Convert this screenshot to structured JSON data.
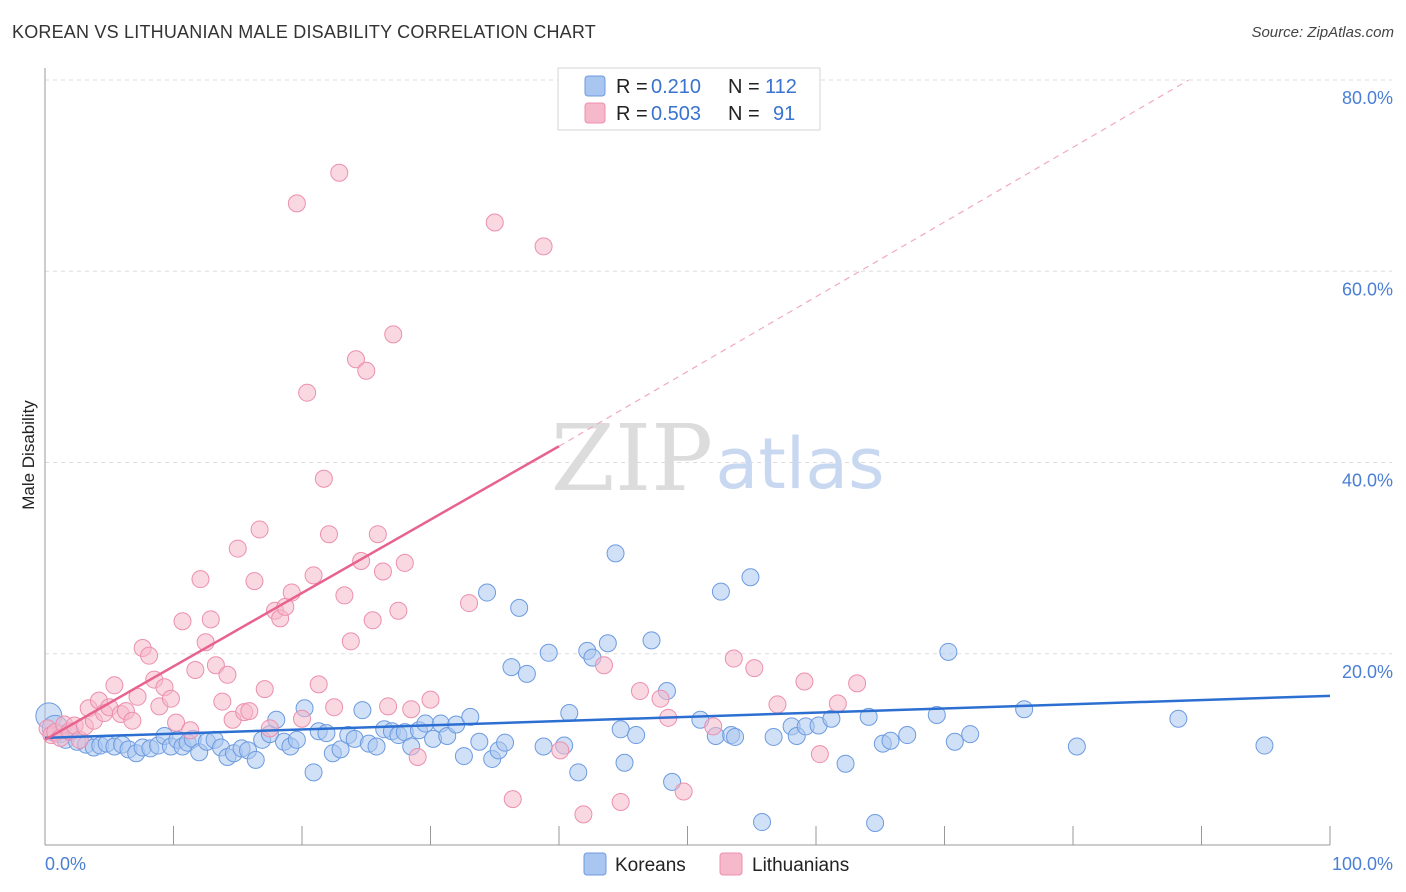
{
  "header": {
    "title": "KOREAN VS LITHUANIAN MALE DISABILITY CORRELATION CHART",
    "source": "Source: ZipAtlas.com"
  },
  "watermark": {
    "zip": "ZIP",
    "atlas": "atlas"
  },
  "colors": {
    "korean_fill": "#a9c6f0",
    "korean_stroke": "#6d9be0",
    "korean_line": "#2c6fd1",
    "lithuanian_fill": "#f6b8cb",
    "lithuanian_stroke": "#ec8fae",
    "lithuanian_line": "#e8628f",
    "axis_tick": "#4a7fd4",
    "grid": "#dddddd"
  },
  "legend": {
    "r_label": "R =",
    "n_label": "N =",
    "rows": [
      {
        "series": "Koreans",
        "r": "0.210",
        "n": "112"
      },
      {
        "series": "Lithuanians",
        "r": "0.503",
        "n": "91"
      }
    ]
  },
  "bottom_legend": [
    "Koreans",
    "Lithuanians"
  ],
  "chart_data": {
    "type": "scatter",
    "title": "KOREAN VS LITHUANIAN MALE DISABILITY CORRELATION CHART",
    "xlabel": "",
    "ylabel": "Male Disability",
    "xlim": [
      0,
      100
    ],
    "ylim": [
      0,
      80
    ],
    "x_tick_labels": [
      "0.0%",
      "100.0%"
    ],
    "y_ticks": [
      20,
      40,
      60,
      80
    ],
    "y_tick_labels": [
      "20.0%",
      "40.0%",
      "60.0%",
      "80.0%"
    ],
    "grid": true,
    "series": [
      {
        "name": "Koreans",
        "trend": {
          "x0": 0,
          "y0": 11.2,
          "x1": 100,
          "y1": 15.6,
          "dashed_extension": false
        },
        "points": [
          [
            0.3,
            13.5
          ],
          [
            0.8,
            12.2
          ],
          [
            1.2,
            11.6
          ],
          [
            1.6,
            11.0
          ],
          [
            2.0,
            11.8
          ],
          [
            2.5,
            10.8
          ],
          [
            3.2,
            10.5
          ],
          [
            3.8,
            10.2
          ],
          [
            4.3,
            10.4
          ],
          [
            4.8,
            10.6
          ],
          [
            5.4,
            10.3
          ],
          [
            6.0,
            10.5
          ],
          [
            6.5,
            10.0
          ],
          [
            7.1,
            9.6
          ],
          [
            7.6,
            10.2
          ],
          [
            8.2,
            10.1
          ],
          [
            8.8,
            10.4
          ],
          [
            9.3,
            11.4
          ],
          [
            9.8,
            10.3
          ],
          [
            10.3,
            11.0
          ],
          [
            10.7,
            10.3
          ],
          [
            11.1,
            10.7
          ],
          [
            11.5,
            11.1
          ],
          [
            12.0,
            9.7
          ],
          [
            12.6,
            10.8
          ],
          [
            13.2,
            11.0
          ],
          [
            13.7,
            10.2
          ],
          [
            14.2,
            9.2
          ],
          [
            14.7,
            9.6
          ],
          [
            15.3,
            10.1
          ],
          [
            15.8,
            9.9
          ],
          [
            16.4,
            8.9
          ],
          [
            16.9,
            11.0
          ],
          [
            17.5,
            11.6
          ],
          [
            18.0,
            13.1
          ],
          [
            18.6,
            10.8
          ],
          [
            19.1,
            10.3
          ],
          [
            19.6,
            11.0
          ],
          [
            20.2,
            14.3
          ],
          [
            20.9,
            7.6
          ],
          [
            21.3,
            11.9
          ],
          [
            21.9,
            11.7
          ],
          [
            22.4,
            9.6
          ],
          [
            23.0,
            10.0
          ],
          [
            23.6,
            11.5
          ],
          [
            24.1,
            11.1
          ],
          [
            24.7,
            14.1
          ],
          [
            25.2,
            10.6
          ],
          [
            25.8,
            10.3
          ],
          [
            26.4,
            12.1
          ],
          [
            27.0,
            11.9
          ],
          [
            27.5,
            11.5
          ],
          [
            28.0,
            11.8
          ],
          [
            28.5,
            10.3
          ],
          [
            29.1,
            12.0
          ],
          [
            29.6,
            12.7
          ],
          [
            30.2,
            11.1
          ],
          [
            30.8,
            12.7
          ],
          [
            31.3,
            11.4
          ],
          [
            32.0,
            12.6
          ],
          [
            32.6,
            9.3
          ],
          [
            33.1,
            13.4
          ],
          [
            33.8,
            10.8
          ],
          [
            34.4,
            26.4
          ],
          [
            34.8,
            9.0
          ],
          [
            35.3,
            9.9
          ],
          [
            35.8,
            10.7
          ],
          [
            36.3,
            18.6
          ],
          [
            36.9,
            24.8
          ],
          [
            37.5,
            17.9
          ],
          [
            38.8,
            10.3
          ],
          [
            39.2,
            20.1
          ],
          [
            40.4,
            10.4
          ],
          [
            40.8,
            13.8
          ],
          [
            41.5,
            7.6
          ],
          [
            42.2,
            20.3
          ],
          [
            42.6,
            19.6
          ],
          [
            43.8,
            21.1
          ],
          [
            44.4,
            30.5
          ],
          [
            44.8,
            12.1
          ],
          [
            45.1,
            8.6
          ],
          [
            46.0,
            11.5
          ],
          [
            47.2,
            21.4
          ],
          [
            48.4,
            16.1
          ],
          [
            48.8,
            6.6
          ],
          [
            51.0,
            13.1
          ],
          [
            52.2,
            11.4
          ],
          [
            52.6,
            26.5
          ],
          [
            53.4,
            11.5
          ],
          [
            53.7,
            11.3
          ],
          [
            54.9,
            28.0
          ],
          [
            55.8,
            2.4
          ],
          [
            56.7,
            11.3
          ],
          [
            58.1,
            12.4
          ],
          [
            58.5,
            11.4
          ],
          [
            59.2,
            12.4
          ],
          [
            60.2,
            12.5
          ],
          [
            61.2,
            13.2
          ],
          [
            62.3,
            8.5
          ],
          [
            64.1,
            13.4
          ],
          [
            64.6,
            2.3
          ],
          [
            65.2,
            10.6
          ],
          [
            65.8,
            10.9
          ],
          [
            67.1,
            11.5
          ],
          [
            69.4,
            13.6
          ],
          [
            70.3,
            20.2
          ],
          [
            70.8,
            10.8
          ],
          [
            72.0,
            11.6
          ],
          [
            76.2,
            14.2
          ],
          [
            80.3,
            10.3
          ],
          [
            88.2,
            13.2
          ],
          [
            94.9,
            10.4
          ]
        ]
      },
      {
        "name": "Lithuanians",
        "trend": {
          "x0": 0,
          "y0": 11.0,
          "x1": 40,
          "y1": 41.7,
          "dashed_extension": true,
          "dashed_x1": 89,
          "dashed_y1": 80
        },
        "points": [
          [
            0.2,
            12.2
          ],
          [
            0.5,
            11.5
          ],
          [
            0.8,
            11.8
          ],
          [
            1.2,
            11.2
          ],
          [
            1.5,
            12.6
          ],
          [
            1.9,
            11.9
          ],
          [
            2.3,
            12.5
          ],
          [
            2.7,
            11.0
          ],
          [
            3.1,
            12.4
          ],
          [
            3.4,
            14.3
          ],
          [
            3.8,
            13.0
          ],
          [
            4.2,
            15.1
          ],
          [
            4.6,
            13.8
          ],
          [
            5.0,
            14.4
          ],
          [
            5.4,
            16.7
          ],
          [
            5.9,
            13.7
          ],
          [
            6.3,
            14.0
          ],
          [
            6.8,
            13.0
          ],
          [
            7.2,
            15.5
          ],
          [
            7.6,
            20.6
          ],
          [
            8.1,
            19.8
          ],
          [
            8.5,
            17.3
          ],
          [
            8.9,
            14.5
          ],
          [
            9.3,
            16.5
          ],
          [
            9.8,
            15.3
          ],
          [
            10.2,
            12.8
          ],
          [
            10.7,
            23.4
          ],
          [
            11.3,
            12.0
          ],
          [
            11.7,
            18.3
          ],
          [
            12.1,
            27.8
          ],
          [
            12.5,
            21.2
          ],
          [
            12.9,
            23.6
          ],
          [
            13.3,
            18.8
          ],
          [
            13.8,
            15.0
          ],
          [
            14.2,
            17.8
          ],
          [
            14.6,
            13.1
          ],
          [
            15.0,
            31.0
          ],
          [
            15.5,
            13.9
          ],
          [
            15.9,
            14.0
          ],
          [
            16.3,
            27.6
          ],
          [
            16.7,
            33.0
          ],
          [
            17.1,
            16.3
          ],
          [
            17.5,
            12.2
          ],
          [
            17.9,
            24.5
          ],
          [
            18.3,
            23.7
          ],
          [
            18.7,
            24.9
          ],
          [
            19.2,
            26.4
          ],
          [
            19.6,
            67.1
          ],
          [
            20.0,
            13.2
          ],
          [
            20.4,
            47.3
          ],
          [
            20.9,
            28.2
          ],
          [
            21.3,
            16.8
          ],
          [
            21.7,
            38.3
          ],
          [
            22.1,
            32.5
          ],
          [
            22.5,
            14.4
          ],
          [
            22.9,
            70.3
          ],
          [
            23.3,
            26.1
          ],
          [
            23.8,
            21.3
          ],
          [
            24.2,
            50.8
          ],
          [
            24.6,
            29.7
          ],
          [
            25.0,
            49.6
          ],
          [
            25.5,
            23.5
          ],
          [
            25.9,
            32.5
          ],
          [
            26.3,
            28.6
          ],
          [
            26.7,
            14.5
          ],
          [
            27.1,
            53.4
          ],
          [
            27.5,
            24.5
          ],
          [
            28.0,
            29.5
          ],
          [
            28.5,
            14.2
          ],
          [
            29.0,
            9.2
          ],
          [
            30.0,
            15.2
          ],
          [
            33.0,
            25.3
          ],
          [
            35.0,
            65.1
          ],
          [
            36.4,
            4.8
          ],
          [
            38.8,
            62.6
          ],
          [
            40.1,
            9.9
          ],
          [
            41.9,
            3.2
          ],
          [
            43.5,
            18.8
          ],
          [
            44.8,
            4.5
          ],
          [
            46.3,
            16.1
          ],
          [
            47.9,
            15.3
          ],
          [
            48.5,
            13.3
          ],
          [
            49.7,
            5.6
          ],
          [
            52.0,
            12.4
          ],
          [
            53.6,
            19.5
          ],
          [
            55.2,
            18.5
          ],
          [
            57.0,
            14.7
          ],
          [
            59.1,
            17.1
          ],
          [
            60.3,
            9.5
          ],
          [
            61.7,
            14.8
          ],
          [
            63.2,
            16.9
          ]
        ]
      }
    ]
  }
}
